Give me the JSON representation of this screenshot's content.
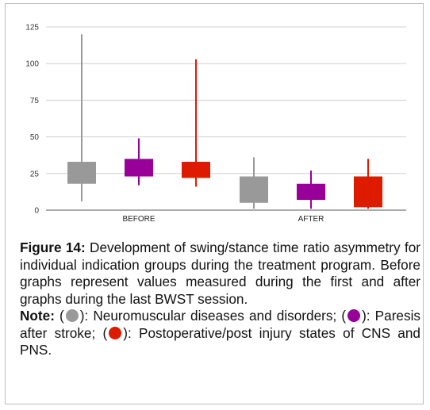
{
  "chart_data": {
    "type": "box",
    "categories": [
      "BEFORE",
      "AFTER"
    ],
    "y_ticks": [
      0,
      25,
      50,
      75,
      100,
      125
    ],
    "ylim": [
      0,
      125
    ],
    "grid": true,
    "series": [
      {
        "color": "#999999",
        "boxes": [
          {
            "category": "BEFORE",
            "min": 6,
            "q1": 18,
            "q3": 33,
            "max": 120
          },
          {
            "category": "AFTER",
            "min": 1,
            "q1": 5,
            "q3": 23,
            "max": 36
          }
        ]
      },
      {
        "color": "#990099",
        "boxes": [
          {
            "category": "BEFORE",
            "min": 17,
            "q1": 23,
            "q3": 35,
            "max": 49
          },
          {
            "category": "AFTER",
            "min": 1,
            "q1": 7,
            "q3": 18,
            "max": 27
          }
        ]
      },
      {
        "color": "#dd1b00",
        "boxes": [
          {
            "category": "BEFORE",
            "min": 16,
            "q1": 22,
            "q3": 33,
            "max": 103
          },
          {
            "category": "AFTER",
            "min": 1,
            "q1": 2,
            "q3": 23,
            "max": 35
          }
        ]
      }
    ]
  },
  "caption": {
    "figure_label": "Figure 14:",
    "figure_text": "Development of swing/stance time ratio asymmetry for individual indication groups during the treatment program. Before graphs represent values measured during the first and after graphs during the last BWST session.",
    "note_label": "Note:",
    "note_open_1": "(",
    "note_text_1": "): Neuromuscular diseases and disorders; (",
    "note_text_2": "): Paresis after stroke; (",
    "note_text_3": "): Postoperative/post injury states of CNS and PNS.",
    "dot_colors": [
      "#999999",
      "#990099",
      "#dd1b00"
    ]
  }
}
